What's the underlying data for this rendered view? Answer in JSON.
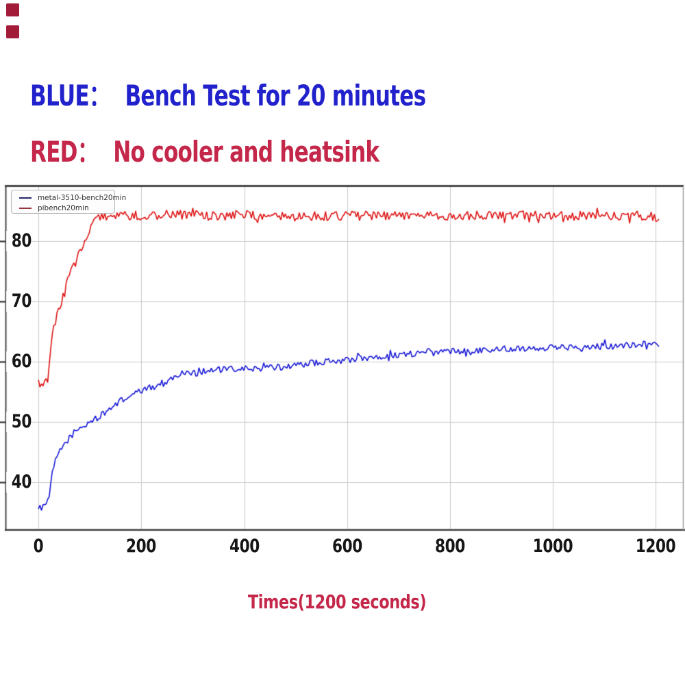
{
  "page": {
    "background": "#ffffff"
  },
  "decor": {
    "squares": [
      {
        "name": "corner-square-top",
        "color": "#a21c3a"
      },
      {
        "name": "corner-square-bottom",
        "color": "#a21c3a"
      }
    ]
  },
  "header": {
    "line1": {
      "label": "BLUE：",
      "text": "Bench Test for 20 minutes",
      "color": "#2222cc"
    },
    "line2": {
      "label": "RED：",
      "text": "No cooler and heatsink",
      "color": "#c4274a"
    }
  },
  "chart_data": {
    "type": "line",
    "title": "",
    "xlabel": "Times(1200 seconds)",
    "xlabel_color": "#c4274a",
    "ylabel": "",
    "xlim": [
      -64,
      1254
    ],
    "ylim": [
      32,
      89.1
    ],
    "x_ticks": [
      0,
      200,
      400,
      600,
      800,
      1000,
      1200
    ],
    "y_ticks": [
      40,
      50,
      60,
      70,
      80
    ],
    "grid": true,
    "grid_color": "#c9c9c9",
    "tick_color": "#161616",
    "legend": {
      "position": "top-left",
      "entries": [
        {
          "label": "metal-3510-bench20min",
          "swatch_color": "#26266b"
        },
        {
          "label": "pibench20min",
          "swatch_color": "#963540"
        }
      ]
    },
    "series": [
      {
        "name": "metal-3510-bench20min",
        "color": "#1616d6",
        "noise_amp": 0.55,
        "seed": 1234,
        "keyframes": [
          [
            0,
            36.0
          ],
          [
            5,
            35.5
          ],
          [
            9,
            36.6
          ],
          [
            14,
            36.2
          ],
          [
            18,
            36.6
          ],
          [
            21,
            37.8
          ],
          [
            24,
            39.8
          ],
          [
            28,
            41.8
          ],
          [
            33,
            43.4
          ],
          [
            39,
            44.7
          ],
          [
            47,
            45.9
          ],
          [
            58,
            47.1
          ],
          [
            72,
            48.3
          ],
          [
            88,
            49.3
          ],
          [
            108,
            50.4
          ],
          [
            128,
            51.3
          ],
          [
            150,
            53.0
          ],
          [
            175,
            54.2
          ],
          [
            205,
            55.3
          ],
          [
            235,
            56.2
          ],
          [
            262,
            57.3
          ],
          [
            285,
            58.3
          ],
          [
            305,
            58.1
          ],
          [
            325,
            58.5
          ],
          [
            365,
            58.7
          ],
          [
            405,
            58.8
          ],
          [
            445,
            58.9
          ],
          [
            485,
            59.2
          ],
          [
            525,
            59.7
          ],
          [
            565,
            60.0
          ],
          [
            605,
            60.3
          ],
          [
            645,
            60.7
          ],
          [
            685,
            61.0
          ],
          [
            725,
            61.3
          ],
          [
            775,
            61.5
          ],
          [
            825,
            61.8
          ],
          [
            875,
            62.0
          ],
          [
            925,
            62.2
          ],
          [
            975,
            62.3
          ],
          [
            1025,
            62.4
          ],
          [
            1075,
            62.6
          ],
          [
            1125,
            62.7
          ],
          [
            1175,
            62.9
          ],
          [
            1200,
            62.9
          ],
          [
            1208,
            62.4
          ]
        ]
      },
      {
        "name": "pibench20min",
        "color": "#de1212",
        "noise_amp": 0.8,
        "seed": 777,
        "keyframes": [
          [
            0,
            56.4
          ],
          [
            6,
            56.1
          ],
          [
            12,
            56.6
          ],
          [
            18,
            57.1
          ],
          [
            20,
            58.2
          ],
          [
            22,
            60.6
          ],
          [
            25,
            62.9
          ],
          [
            29,
            64.9
          ],
          [
            33,
            66.5
          ],
          [
            37,
            68.0
          ],
          [
            41,
            69.3
          ],
          [
            46,
            70.5
          ],
          [
            52,
            72.3
          ],
          [
            58,
            74.0
          ],
          [
            64,
            75.3
          ],
          [
            70,
            75.9
          ],
          [
            78,
            77.7
          ],
          [
            86,
            79.3
          ],
          [
            95,
            81.1
          ],
          [
            104,
            82.7
          ],
          [
            113,
            83.7
          ],
          [
            122,
            84.2
          ],
          [
            180,
            84.2
          ],
          [
            260,
            84.4
          ],
          [
            340,
            84.2
          ],
          [
            420,
            84.3
          ],
          [
            500,
            84.1
          ],
          [
            580,
            84.2
          ],
          [
            660,
            84.2
          ],
          [
            740,
            84.1
          ],
          [
            820,
            84.3
          ],
          [
            900,
            84.3
          ],
          [
            980,
            84.2
          ],
          [
            1060,
            84.2
          ],
          [
            1140,
            84.3
          ],
          [
            1190,
            84.2
          ],
          [
            1200,
            83.8
          ],
          [
            1208,
            83.0
          ]
        ]
      }
    ],
    "sample_step_s": 3,
    "t_end": 1208
  }
}
